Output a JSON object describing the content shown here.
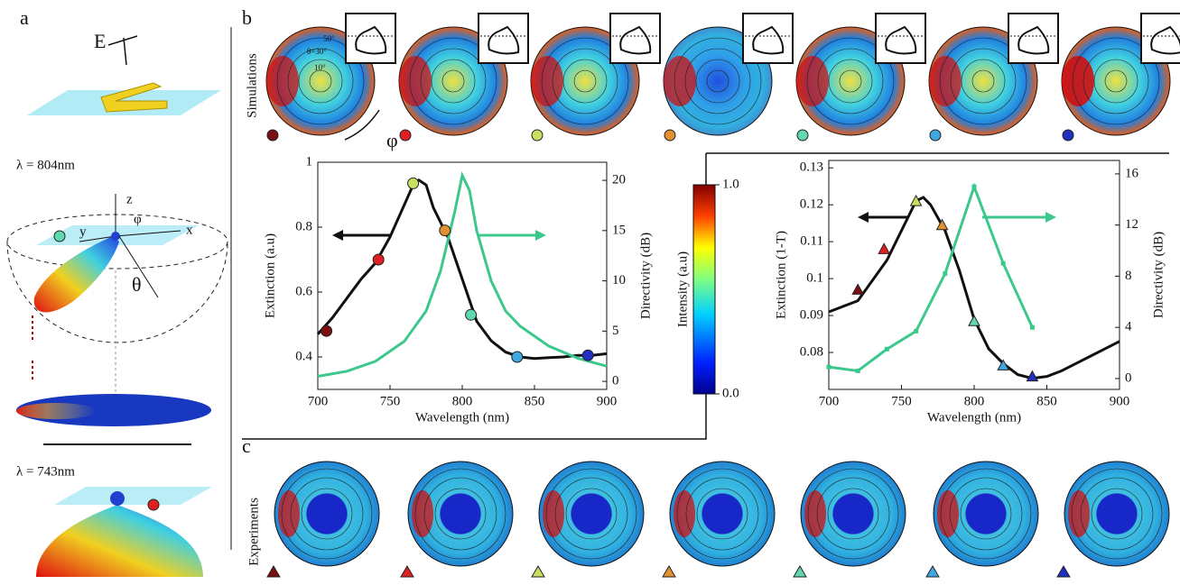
{
  "figure": {
    "panel_labels": [
      "a",
      "b",
      "c"
    ],
    "panel_a": {
      "field_label": "E",
      "wavelength_1": "λ = 804nm",
      "axis_z": "z",
      "axis_y": "y",
      "axis_x": "x",
      "angle_phi": "φ",
      "angle_theta": "θ",
      "wavelength_2": "λ = 743nm"
    },
    "panel_b": {
      "row_label": "Simulations",
      "rotation_label": "φ",
      "ring_labels": [
        "50°",
        "θ=30°",
        "10°"
      ]
    },
    "panel_c": {
      "row_label": "Experiments"
    },
    "colorbar": {
      "label": "Intensity (a.u)",
      "ticks": [
        {
          "value": 0,
          "label": "0.0"
        },
        {
          "value": 1,
          "label": "1.0"
        }
      ]
    }
  },
  "chart_data": [
    {
      "type": "line",
      "xlabel": "Wavelength (nm)",
      "ylabel": "Extinction (a.u)",
      "y2label": "Directivity (dB)",
      "xlim": [
        700,
        900
      ],
      "xticks": [
        700,
        750,
        800,
        850,
        900
      ],
      "ylim": [
        0.3,
        1
      ],
      "yticks": [
        0.4,
        0.6,
        0.8,
        1
      ],
      "y2lim": [
        -0.8,
        21.8
      ],
      "y2ticks": [
        0,
        5,
        10,
        15,
        20
      ],
      "series": [
        {
          "color": "#111111",
          "x": [
            700,
            710,
            720,
            730,
            740,
            750,
            760,
            765,
            770,
            775,
            780,
            790,
            800,
            810,
            820,
            830,
            840,
            850,
            860,
            870,
            880,
            890,
            900
          ],
          "values": [
            0.47,
            0.52,
            0.58,
            0.64,
            0.69,
            0.77,
            0.87,
            0.92,
            0.945,
            0.93,
            0.86,
            0.77,
            0.64,
            0.51,
            0.45,
            0.415,
            0.4,
            0.395,
            0.398,
            0.4,
            0.405,
            0.405,
            0.41
          ]
        },
        {
          "color": "#3cc88c",
          "axis": "y2",
          "x": [
            700,
            720,
            740,
            760,
            775,
            785,
            795,
            800,
            805,
            810,
            820,
            830,
            840,
            860,
            880,
            900
          ],
          "values": [
            0.5,
            1,
            2,
            4,
            7,
            11,
            17,
            20.5,
            19,
            15,
            10,
            7,
            5.5,
            3.5,
            2.3,
            1.5
          ]
        },
        {
          "marker": "circle",
          "x": [
            706,
            742,
            766,
            788,
            806,
            838,
            887
          ],
          "values": [
            0.48,
            0.7,
            0.935,
            0.79,
            0.53,
            0.4,
            0.405
          ],
          "colors": [
            "#7a1010",
            "#e02020",
            "#c8e060",
            "#e09030",
            "#60d8b0",
            "#40a8e0",
            "#2030c0"
          ]
        }
      ]
    },
    {
      "type": "line",
      "xlabel": "Wavelength (nm)",
      "ylabel": "Extinction (1-T)",
      "y2label": "Directivity (dB)",
      "xlim": [
        700,
        900
      ],
      "xticks": [
        700,
        750,
        800,
        850,
        900
      ],
      "ylim": [
        0.07,
        0.132
      ],
      "yticks": [
        0.08,
        0.09,
        0.1,
        0.11,
        0.12,
        0.13
      ],
      "y2lim": [
        -0.85,
        17.05
      ],
      "y2ticks": [
        0,
        4,
        8,
        12,
        16
      ],
      "series": [
        {
          "color": "#111111",
          "x": [
            700,
            720,
            740,
            750,
            760,
            765,
            770,
            780,
            790,
            800,
            810,
            820,
            830,
            840,
            850,
            860,
            870,
            880,
            890,
            900
          ],
          "values": [
            0.091,
            0.094,
            0.105,
            0.113,
            0.121,
            0.122,
            0.12,
            0.113,
            0.102,
            0.089,
            0.081,
            0.077,
            0.074,
            0.073,
            0.0735,
            0.075,
            0.077,
            0.079,
            0.081,
            0.083
          ]
        },
        {
          "color": "#3cc88c",
          "axis": "y2",
          "points": true,
          "x": [
            700,
            720,
            740,
            760,
            780,
            800,
            820,
            840
          ],
          "values": [
            0.9,
            0.6,
            2.3,
            3.7,
            8.2,
            15,
            9,
            4
          ]
        },
        {
          "marker": "triangle",
          "x": [
            720,
            738,
            760,
            778,
            800,
            820,
            840
          ],
          "values": [
            0.097,
            0.108,
            0.121,
            0.1145,
            0.0885,
            0.0765,
            0.0735
          ],
          "colors": [
            "#7a1010",
            "#e02020",
            "#c8e060",
            "#e09030",
            "#60d8b0",
            "#40a8e0",
            "#2030c0"
          ]
        }
      ]
    }
  ]
}
